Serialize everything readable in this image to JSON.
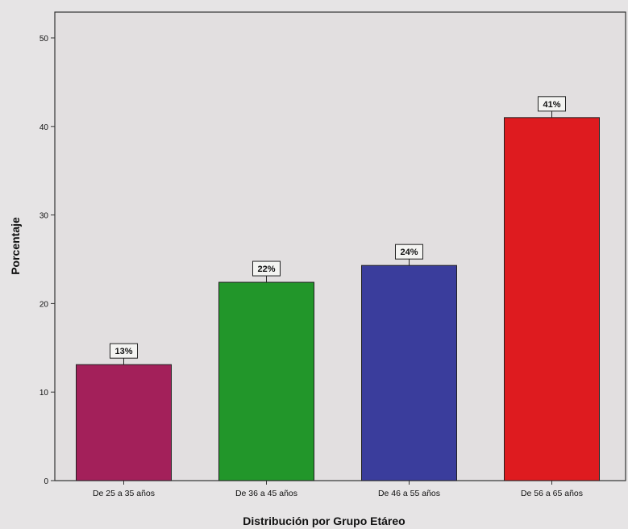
{
  "chart_data": {
    "type": "bar",
    "categories": [
      "De 25 a 35 años",
      "De 36 a 45 años",
      "De 46 a 55 años",
      "De 56 a 65 años"
    ],
    "values": [
      13.1,
      22.4,
      24.3,
      41.0
    ],
    "data_labels": [
      "13%",
      "22%",
      "24%",
      "41%"
    ],
    "colors": [
      "#a3205a",
      "#22962a",
      "#3a3d9c",
      "#de1b1f"
    ],
    "xlabel": "Distribución por Grupo Etáreo",
    "ylabel": "Porcentaje",
    "ylim": [
      0,
      50
    ],
    "yticks": [
      0,
      10,
      20,
      30,
      40,
      50
    ],
    "grid": false,
    "legend": "none"
  }
}
